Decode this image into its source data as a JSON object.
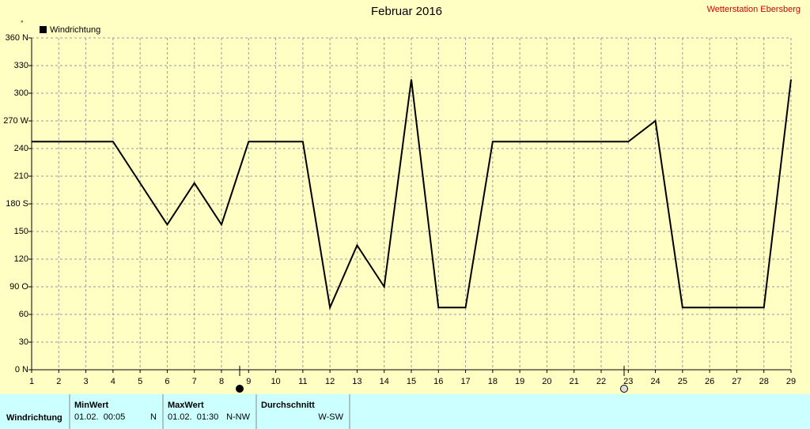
{
  "chart_data": {
    "type": "line",
    "title": "Februar 2016",
    "subtitle": "Wetterstation Ebersberg",
    "y_unit": "°",
    "x": [
      1,
      2,
      3,
      4,
      5,
      6,
      7,
      8,
      9,
      10,
      11,
      12,
      13,
      14,
      15,
      16,
      17,
      18,
      19,
      20,
      21,
      22,
      23,
      24,
      25,
      26,
      27,
      28,
      29
    ],
    "series": [
      {
        "name": "Windrichtung",
        "color": "#000000",
        "values": [
          247.5,
          247.5,
          247.5,
          247.5,
          202.5,
          157.5,
          202.5,
          157.5,
          247.5,
          247.5,
          247.5,
          67.5,
          135,
          90,
          315,
          67.5,
          67.5,
          247.5,
          247.5,
          247.5,
          247.5,
          247.5,
          247.5,
          270,
          67.5,
          67.5,
          67.5,
          67.5,
          315
        ]
      }
    ],
    "xlim": [
      1,
      29
    ],
    "xticks": [
      1,
      2,
      3,
      4,
      5,
      6,
      7,
      8,
      9,
      10,
      11,
      12,
      13,
      14,
      15,
      16,
      17,
      18,
      19,
      20,
      21,
      22,
      23,
      24,
      25,
      26,
      27,
      28,
      29
    ],
    "ylim": [
      0,
      360
    ],
    "yticks": [
      {
        "value": 0,
        "label": "0 N"
      },
      30,
      60,
      {
        "value": 90,
        "label": "90 O"
      },
      120,
      150,
      {
        "value": 180,
        "label": "180 S"
      },
      210,
      240,
      {
        "value": 270,
        "label": "270 W"
      },
      300,
      330,
      {
        "value": 360,
        "label": "360 N"
      }
    ],
    "grid": true,
    "legend": "top-left"
  },
  "table": {
    "columns": [
      "MinWert",
      "MaxWert",
      "Durchschnitt"
    ],
    "rows": [
      [
        "Windrichtung",
        "01.02.  00:05",
        "N",
        "01.02.  01:30",
        "N-NW",
        "W-SW"
      ]
    ]
  }
}
